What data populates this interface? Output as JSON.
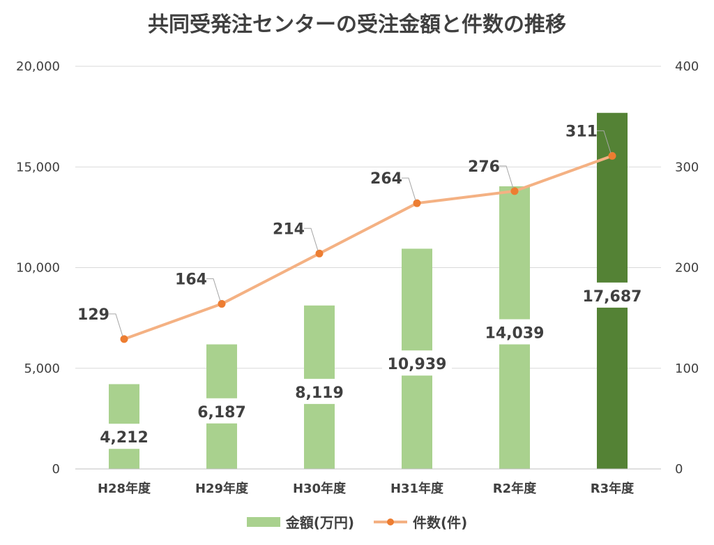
{
  "chart_data": {
    "type": "bar",
    "title": "共同受発注センターの受注金額と件数の推移",
    "categories": [
      "H28年度",
      "H29年度",
      "H30年度",
      "H31年度",
      "R2年度",
      "R3年度"
    ],
    "series": [
      {
        "name": "金額(万円)",
        "type": "bar",
        "axis": "left",
        "values": [
          4212,
          6187,
          8119,
          10939,
          14039,
          17687
        ],
        "value_labels": [
          "4,212",
          "6,187",
          "8,119",
          "10,939",
          "14,039",
          "17,687"
        ],
        "color": "#a9d18e",
        "highlight_color": "#548235",
        "highlight_index": 5
      },
      {
        "name": "件数(件)",
        "type": "line",
        "axis": "right",
        "values": [
          129,
          164,
          214,
          264,
          276,
          311
        ],
        "color": "#f4b183",
        "marker_color": "#ed7d31"
      }
    ],
    "y_left": {
      "min": 0,
      "max": 20000,
      "ticks": [
        "0",
        "5,000",
        "10,000",
        "15,000",
        "20,000"
      ]
    },
    "y_right": {
      "min": 0,
      "max": 400,
      "ticks": [
        "0",
        "100",
        "200",
        "300",
        "400"
      ]
    },
    "grid": true,
    "legend": "bottom"
  },
  "legend": {
    "bar_label": "金額(万円)",
    "line_label": "件数(件)"
  }
}
